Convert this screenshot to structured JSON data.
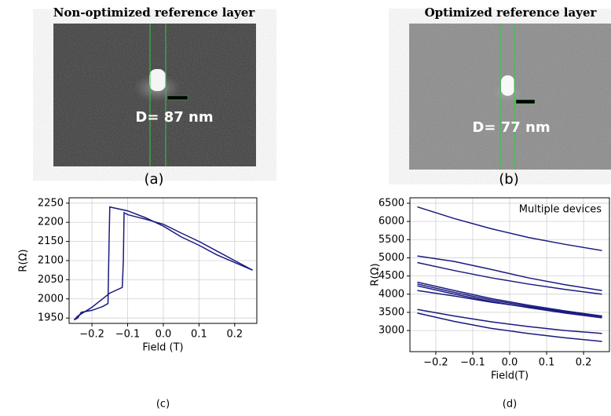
{
  "images": [
    {
      "title": "Non-optimized reference layer",
      "annotation": "D= 87 nm",
      "label": "(a)"
    },
    {
      "title": "Optimized reference layer",
      "annotation": "D= 77 nm",
      "label": "(b)"
    }
  ],
  "chart_data": [
    {
      "type": "line",
      "ylabel": "R(Ω)",
      "xlabel": "Field (T)",
      "panel_label": "(c)",
      "xlim": [
        -0.264,
        0.262
      ],
      "ylim": [
        1936,
        2264
      ],
      "xticks": [
        {
          "value": -0.2,
          "label": "−0.2"
        },
        {
          "value": -0.1,
          "label": "−0.1"
        },
        {
          "value": 0,
          "label": "0.0"
        },
        0.1,
        0.2
      ],
      "yticks": [
        1950,
        2000,
        2050,
        2100,
        2150,
        2200,
        2250
      ],
      "grid": true,
      "series": [
        {
          "color": "#1a1a80",
          "x": [
            -0.25,
            -0.24,
            -0.23,
            -0.2,
            -0.17,
            -0.155,
            -0.152,
            -0.15,
            -0.1,
            -0.05,
            0,
            0.05,
            0.1,
            0.15,
            0.2,
            0.25
          ],
          "values": [
            1945,
            1950,
            1965,
            1970,
            1980,
            1988,
            2150,
            2240,
            2230,
            2212,
            2190,
            2162,
            2140,
            2115,
            2095,
            2075
          ]
        },
        {
          "color": "#1a1a80",
          "x": [
            0.25,
            0.2,
            0.15,
            0.1,
            0.05,
            0,
            -0.05,
            -0.1,
            -0.11,
            -0.112,
            -0.115,
            -0.15,
            -0.2,
            -0.24,
            -0.25
          ],
          "values": [
            2075,
            2100,
            2125,
            2150,
            2172,
            2195,
            2208,
            2220,
            2225,
            2100,
            2030,
            2015,
            1978,
            1955,
            1945
          ]
        }
      ]
    },
    {
      "type": "line",
      "ylabel": "R(Ω)",
      "xlabel": "Field(T)",
      "panel_label": "(d)",
      "annotation": "Multiple devices",
      "xlim": [
        -0.27,
        0.27
      ],
      "ylim": [
        2420,
        6650
      ],
      "xticks": [
        {
          "value": -0.2,
          "label": "−0.2"
        },
        {
          "value": -0.1,
          "label": "−0.1"
        },
        {
          "value": 0,
          "label": "0.0"
        },
        0.1,
        0.2
      ],
      "yticks": [
        3000,
        3500,
        4000,
        4500,
        5000,
        5500,
        6000,
        6500
      ],
      "grid": true,
      "x": [
        -0.25,
        -0.15,
        -0.05,
        0.05,
        0.15,
        0.25
      ],
      "series": [
        {
          "color": "#1a1a80",
          "values": [
            6400,
            6080,
            5800,
            5560,
            5370,
            5200
          ]
        },
        {
          "color": "#1a1a80",
          "values": [
            5050,
            4900,
            4680,
            4450,
            4260,
            4100
          ]
        },
        {
          "color": "#1a1a80",
          "values": [
            4870,
            4650,
            4450,
            4280,
            4130,
            4000
          ]
        },
        {
          "color": "#1a1a80",
          "values": [
            4330,
            4100,
            3880,
            3700,
            3540,
            3400
          ]
        },
        {
          "color": "#1a1a80",
          "values": [
            4280,
            4050,
            3840,
            3670,
            3510,
            3380
          ]
        },
        {
          "color": "#1a1a80",
          "values": [
            4230,
            4000,
            3800,
            3630,
            3480,
            3350
          ]
        },
        {
          "color": "#1a1a80",
          "values": [
            4100,
            3950,
            3780,
            3640,
            3510,
            3400
          ]
        },
        {
          "color": "#1a1a80",
          "values": [
            3580,
            3400,
            3240,
            3110,
            3000,
            2920
          ]
        },
        {
          "color": "#1a1a80",
          "values": [
            3480,
            3250,
            3060,
            2920,
            2800,
            2700
          ]
        }
      ]
    }
  ]
}
